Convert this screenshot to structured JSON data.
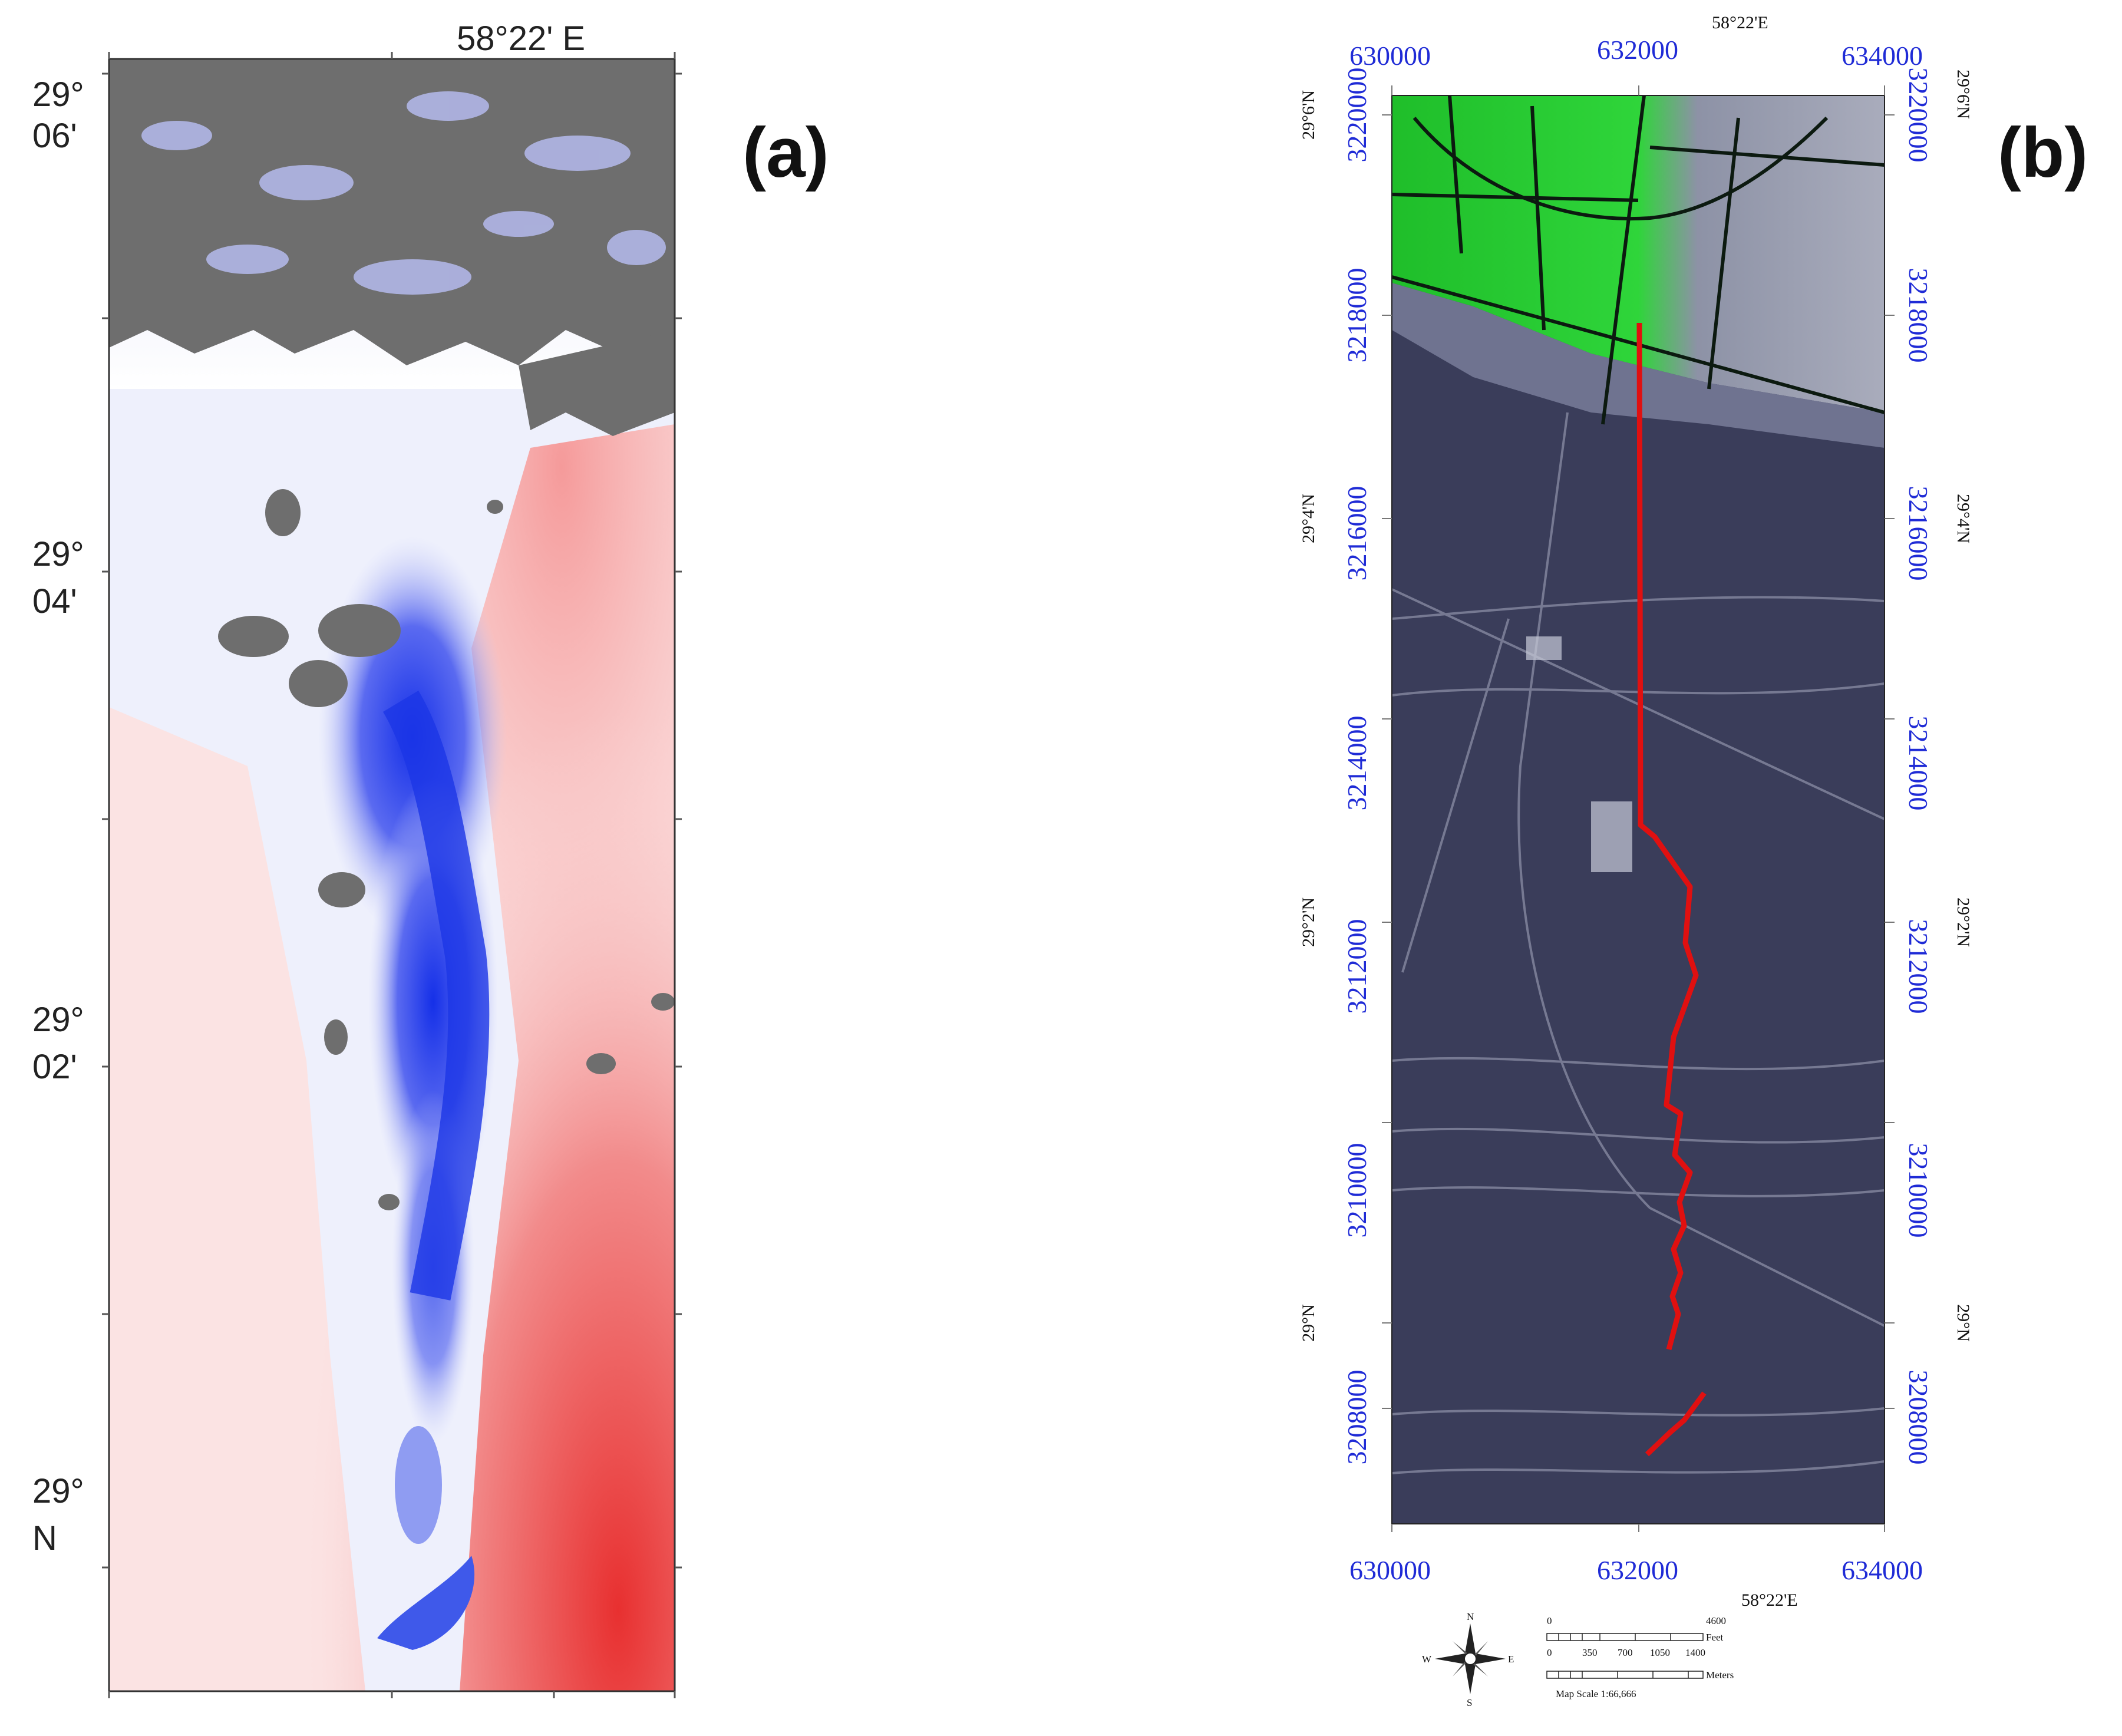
{
  "panel_a": {
    "tag": "(a)",
    "top_label": "58°22' E",
    "lat_labels": [
      {
        "l1": "29°",
        "l2": "06'"
      },
      {
        "l1": "29°",
        "l2": "04'"
      },
      {
        "l1": "29°",
        "l2": "02'"
      },
      {
        "l1": "29°",
        "l2": "N"
      }
    ]
  },
  "panel_b": {
    "tag": "(b)",
    "top_lon": "58°22'E",
    "bottom_lon": "58°22'E",
    "easting_top": [
      "630000",
      "632000",
      "634000"
    ],
    "easting_bottom": [
      "630000",
      "632000",
      "634000"
    ],
    "northing_left": [
      "3220000",
      "3218000",
      "3216000",
      "3214000",
      "3212000",
      "3210000",
      "3208000"
    ],
    "northing_right": [
      "3220000",
      "3218000",
      "3216000",
      "3214000",
      "3212000",
      "3210000",
      "3208000"
    ],
    "lat_left": [
      "29°6'N",
      "29°4'N",
      "29°2'N",
      "29°N"
    ],
    "lat_right": [
      "29°6'N",
      "29°4'N",
      "29°2'N",
      "29°N"
    ],
    "scale_feet_top": [
      "0",
      "4600"
    ],
    "scale_feet_unit": "Feet",
    "scale_meters_ticks": [
      "0",
      "350",
      "700",
      "1050",
      "1400"
    ],
    "scale_meters_unit": "Meters",
    "map_scale": "Map Scale 1:66,666",
    "compass_letters": [
      "N",
      "E",
      "S",
      "W"
    ]
  },
  "colors": {
    "uplift_red": "#e84040",
    "subsidence_blue": "#1530e8",
    "no_data_gray": "#6e6e6e",
    "profile_line": "#e01010",
    "vegetation": "#22dd22",
    "desert": "#3a3d5a",
    "coord_blue": "#1f2bd6"
  }
}
